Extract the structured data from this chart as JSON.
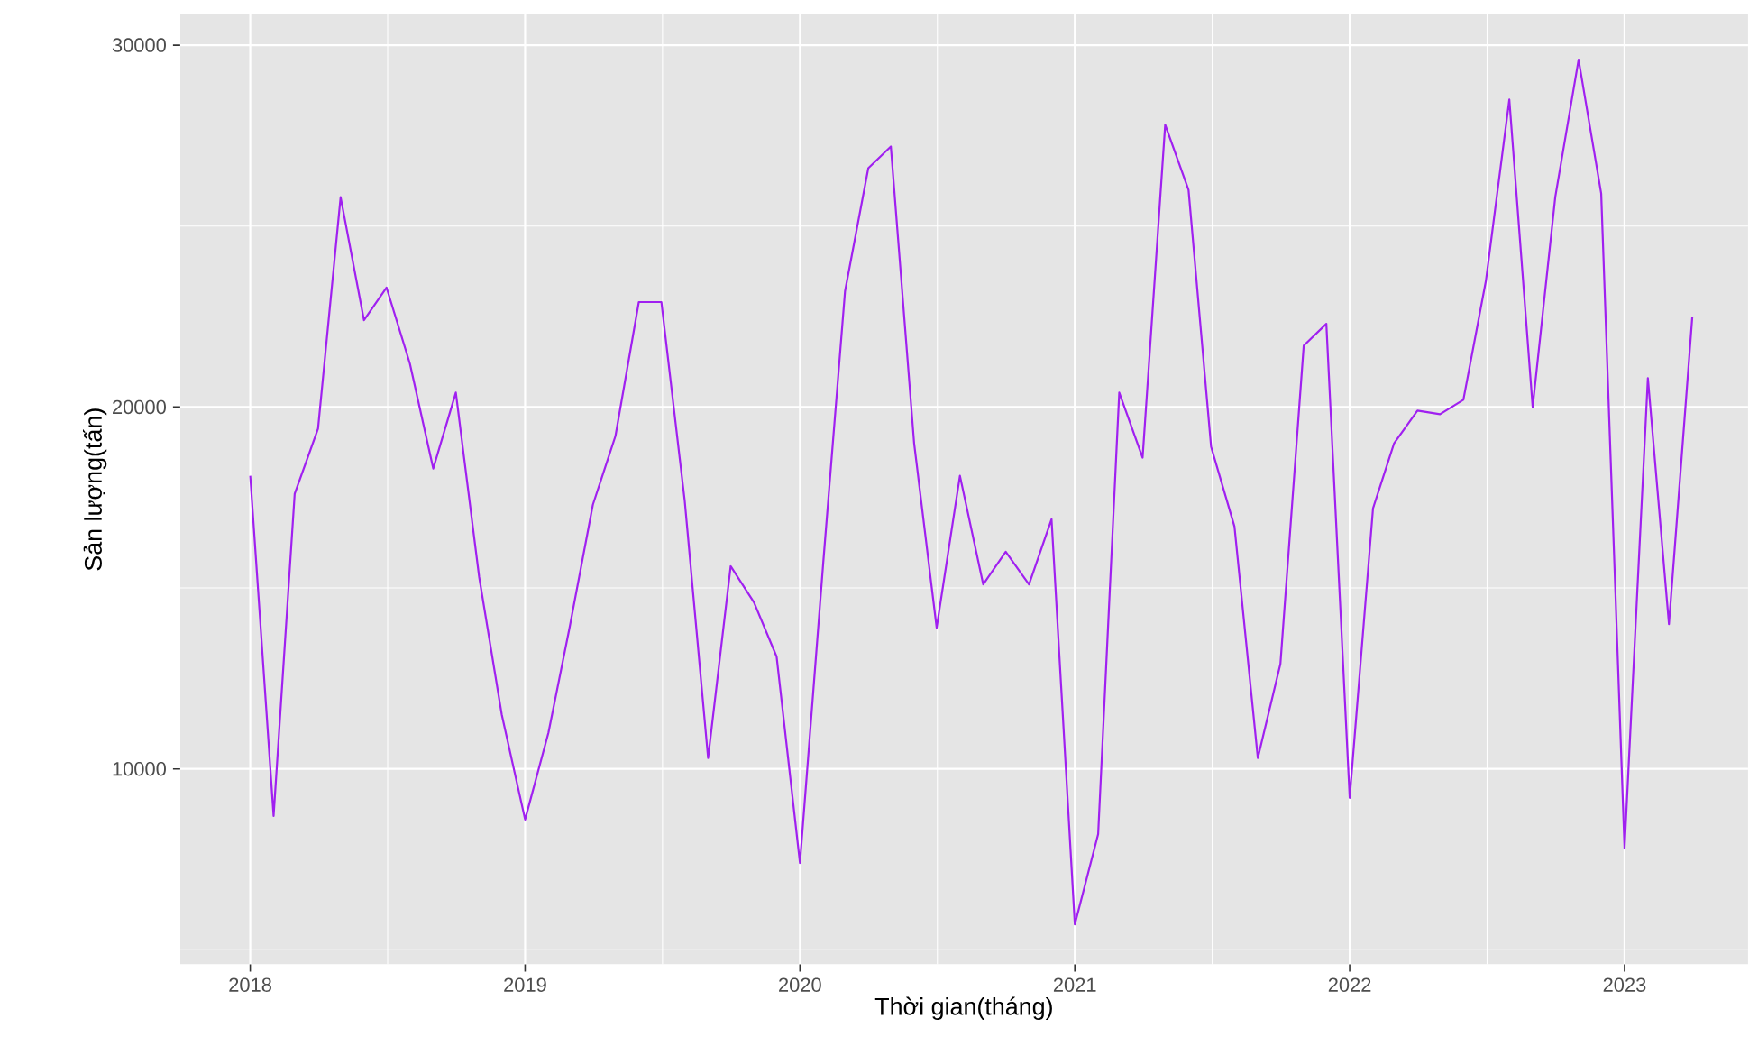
{
  "chart_data": {
    "type": "line",
    "xlabel": "Thời gian(tháng)",
    "ylabel": "Sản lượng(tấn)",
    "x": [
      "2018-01",
      "2018-02",
      "2018-03",
      "2018-04",
      "2018-05",
      "2018-06",
      "2018-07",
      "2018-08",
      "2018-09",
      "2018-10",
      "2018-11",
      "2018-12",
      "2019-01",
      "2019-02",
      "2019-03",
      "2019-04",
      "2019-05",
      "2019-06",
      "2019-07",
      "2019-08",
      "2019-09",
      "2019-10",
      "2019-11",
      "2019-12",
      "2020-01",
      "2020-02",
      "2020-03",
      "2020-04",
      "2020-05",
      "2020-06",
      "2020-07",
      "2020-08",
      "2020-09",
      "2020-10",
      "2020-11",
      "2020-12",
      "2021-01",
      "2021-02",
      "2021-03",
      "2021-04",
      "2021-05",
      "2021-06",
      "2021-07",
      "2021-08",
      "2021-09",
      "2021-10",
      "2021-11",
      "2021-12",
      "2022-01",
      "2022-02",
      "2022-03",
      "2022-04",
      "2022-05",
      "2022-06",
      "2022-07",
      "2022-08",
      "2022-09",
      "2022-10",
      "2022-11",
      "2022-12",
      "2023-01",
      "2023-02",
      "2023-03",
      "2023-04"
    ],
    "series": [
      {
        "color": "#a020f0",
        "values": [
          18100,
          8700,
          17600,
          19400,
          25800,
          22400,
          23300,
          21200,
          18300,
          20400,
          15300,
          11500,
          8600,
          11000,
          13900,
          17300,
          19200,
          22900,
          22900,
          17400,
          10300,
          15600,
          14600,
          13100,
          7400,
          15700,
          23200,
          26600,
          27200,
          19000,
          13900,
          18100,
          15100,
          16000,
          15100,
          16900,
          5700,
          8200,
          20400,
          18600,
          27800,
          26000,
          18900,
          16700,
          10300,
          12900,
          21700,
          22300,
          9200,
          17200,
          19000,
          19900,
          19800,
          20200,
          23500,
          28500,
          20000,
          25800,
          29600,
          25900,
          7800,
          20800,
          14000,
          22500
        ]
      }
    ],
    "xlim": [
      "2017-09-30",
      "2023-06-14"
    ],
    "xticks": [
      "2018",
      "2019",
      "2020",
      "2021",
      "2022",
      "2023"
    ],
    "ylim": [
      4600,
      30850
    ],
    "yticks": [
      10000,
      20000,
      30000
    ],
    "grid": true,
    "marker": "none",
    "line_style": "solid"
  }
}
